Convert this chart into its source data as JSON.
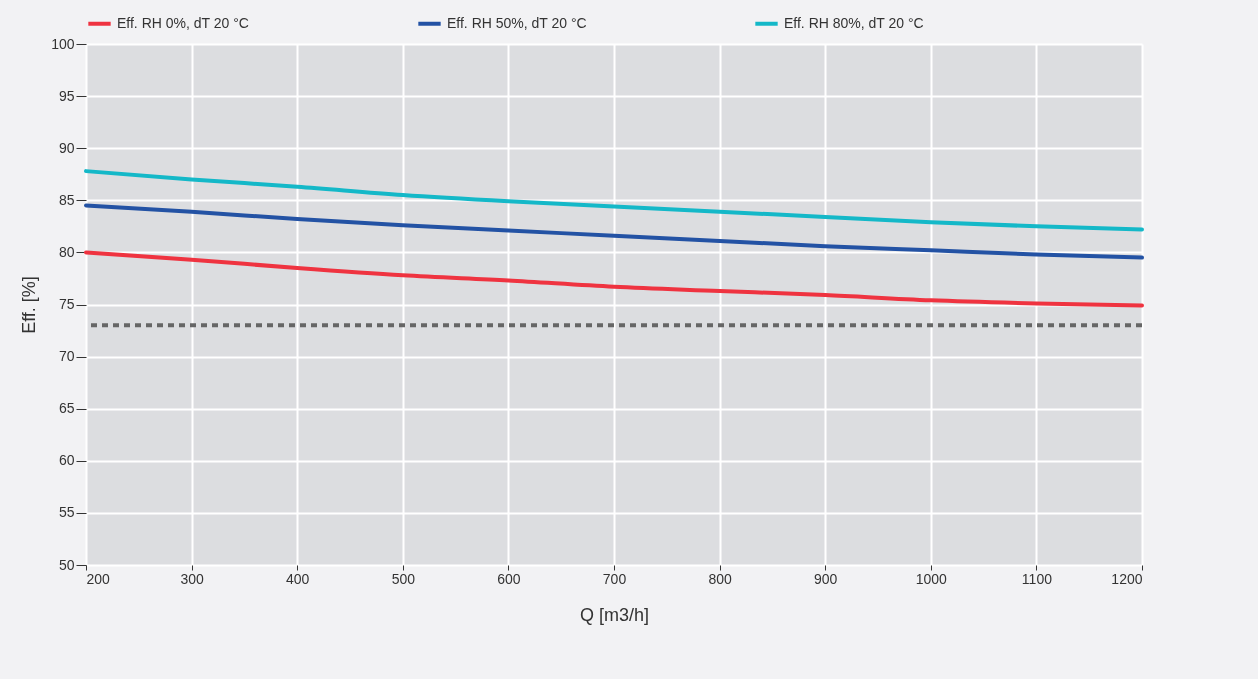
{
  "chart_data": {
    "type": "line",
    "xlabel": "Q [m3/h]",
    "ylabel": "Eff. [%]",
    "x": [
      200,
      300,
      400,
      500,
      600,
      700,
      800,
      900,
      1000,
      1100,
      1200
    ],
    "series": [
      {
        "name": "Eff. RH 0%, dT 20 °C",
        "color": "#ef3340",
        "values": [
          80.0,
          79.3,
          78.5,
          77.8,
          77.3,
          76.7,
          76.3,
          75.9,
          75.4,
          75.1,
          74.9
        ]
      },
      {
        "name": "Eff. RH 50%, dT 20 °C",
        "color": "#2352a4",
        "values": [
          84.5,
          83.9,
          83.2,
          82.6,
          82.1,
          81.6,
          81.1,
          80.6,
          80.2,
          79.8,
          79.5
        ]
      },
      {
        "name": "Eff. RH 80%, dT 20 °C",
        "color": "#14b8c8",
        "values": [
          87.8,
          87.0,
          86.3,
          85.5,
          84.9,
          84.4,
          83.9,
          83.4,
          82.9,
          82.5,
          82.2
        ]
      }
    ],
    "xlim": [
      200,
      1200
    ],
    "xticks": [
      200,
      300,
      400,
      500,
      600,
      700,
      800,
      900,
      1000,
      1100,
      1200
    ],
    "ylim": [
      50,
      100
    ],
    "yticks": [
      50,
      55,
      60,
      65,
      70,
      75,
      80,
      85,
      90,
      95,
      100
    ],
    "ref_lines": [
      {
        "axis": "y",
        "value": 73,
        "color": "#666666",
        "line_style": "dashed"
      }
    ],
    "grid": true,
    "legend": "top",
    "marker": "none",
    "line_style": "solid"
  }
}
